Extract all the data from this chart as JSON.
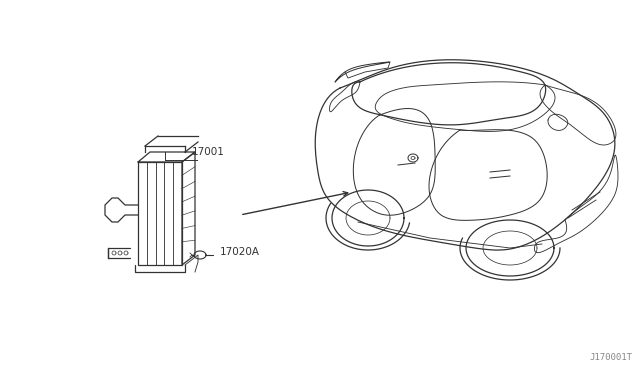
{
  "bg_color": "#ffffff",
  "line_color": "#333333",
  "text_color": "#333333",
  "watermark": "J170001T",
  "part_label_1": "17001",
  "part_label_2": "17020A",
  "fig_width": 6.4,
  "fig_height": 3.72,
  "dpi": 100
}
